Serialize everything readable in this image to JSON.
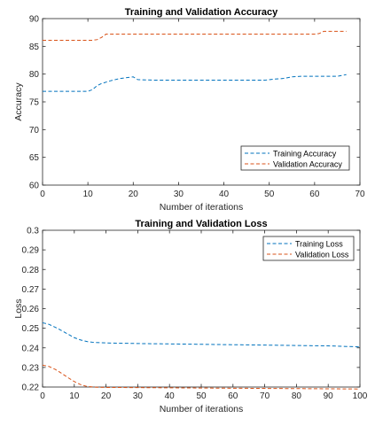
{
  "chart_data": [
    {
      "type": "line",
      "title": "Training and Validation Accuracy",
      "xlabel": "Number of iterations",
      "ylabel": "Accuracy",
      "xlim": [
        0,
        70
      ],
      "ylim": [
        60,
        90
      ],
      "xticks": [
        "0",
        "10",
        "20",
        "30",
        "40",
        "50",
        "60",
        "70"
      ],
      "yticks": [
        "60",
        "65",
        "70",
        "75",
        "80",
        "85",
        "90"
      ],
      "grid": false,
      "legend_position": "bottom-right",
      "series": [
        {
          "name": "Training Accuracy",
          "color": "#0072BD",
          "style": "dashed",
          "points": [
            [
              0,
              76.9
            ],
            [
              10,
              76.9
            ],
            [
              11,
              77.2
            ],
            [
              12,
              77.9
            ],
            [
              13,
              78.3
            ],
            [
              15,
              78.8
            ],
            [
              17,
              79.2
            ],
            [
              19,
              79.4
            ],
            [
              20,
              79.5
            ],
            [
              21,
              79.0
            ],
            [
              25,
              78.9
            ],
            [
              30,
              78.9
            ],
            [
              40,
              78.9
            ],
            [
              49,
              78.9
            ],
            [
              51,
              79.1
            ],
            [
              53,
              79.2
            ],
            [
              55,
              79.5
            ],
            [
              57,
              79.6
            ],
            [
              60,
              79.6
            ],
            [
              65,
              79.6
            ],
            [
              67,
              79.9
            ]
          ]
        },
        {
          "name": "Validation Accuracy",
          "color": "#D95319",
          "style": "dashed",
          "points": [
            [
              0,
              86.1
            ],
            [
              11,
              86.1
            ],
            [
              12,
              86.2
            ],
            [
              13,
              86.6
            ],
            [
              14,
              87.2
            ],
            [
              20,
              87.2
            ],
            [
              40,
              87.2
            ],
            [
              60,
              87.2
            ],
            [
              61,
              87.3
            ],
            [
              62,
              87.7
            ],
            [
              67,
              87.7
            ]
          ]
        }
      ]
    },
    {
      "type": "line",
      "title": "Training and Validation Loss",
      "xlabel": "Number of iterations",
      "ylabel": "Loss",
      "xlim": [
        0,
        100
      ],
      "ylim": [
        0.22,
        0.3
      ],
      "xticks": [
        "0",
        "10",
        "20",
        "30",
        "40",
        "50",
        "60",
        "70",
        "80",
        "90",
        "100"
      ],
      "yticks": [
        "0.22",
        "0.23",
        "0.24",
        "0.25",
        "0.26",
        "0.27",
        "0.28",
        "0.29",
        "0.3"
      ],
      "grid": false,
      "legend_position": "top-right",
      "series": [
        {
          "name": "Training Loss",
          "color": "#0072BD",
          "style": "dashed",
          "points": [
            [
              0,
              0.2528
            ],
            [
              2,
              0.252
            ],
            [
              4,
              0.2505
            ],
            [
              6,
              0.2488
            ],
            [
              8,
              0.247
            ],
            [
              10,
              0.2452
            ],
            [
              12,
              0.244
            ],
            [
              14,
              0.2432
            ],
            [
              16,
              0.2428
            ],
            [
              20,
              0.2425
            ],
            [
              30,
              0.2422
            ],
            [
              40,
              0.242
            ],
            [
              50,
              0.2418
            ],
            [
              60,
              0.2416
            ],
            [
              70,
              0.2414
            ],
            [
              80,
              0.2412
            ],
            [
              90,
              0.241
            ],
            [
              100,
              0.2405
            ]
          ]
        },
        {
          "name": "Validation Loss",
          "color": "#D95319",
          "style": "dashed",
          "points": [
            [
              0,
              0.2312
            ],
            [
              2,
              0.2305
            ],
            [
              4,
              0.229
            ],
            [
              6,
              0.227
            ],
            [
              8,
              0.2248
            ],
            [
              10,
              0.2228
            ],
            [
              12,
              0.2212
            ],
            [
              14,
              0.2203
            ],
            [
              17,
              0.2199
            ],
            [
              20,
              0.2198
            ],
            [
              30,
              0.2197
            ],
            [
              40,
              0.2196
            ],
            [
              50,
              0.2195
            ],
            [
              60,
              0.2194
            ],
            [
              70,
              0.2193
            ],
            [
              80,
              0.2192
            ],
            [
              90,
              0.2191
            ],
            [
              100,
              0.219
            ]
          ]
        }
      ]
    }
  ]
}
